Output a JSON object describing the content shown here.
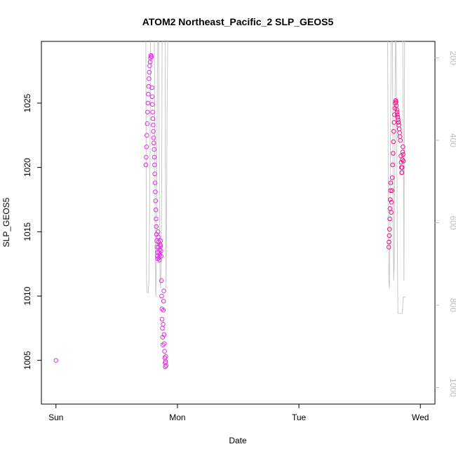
{
  "chart_data": {
    "type": "scatter",
    "title": "ATOM2 Northeast_Pacific_2 SLP_GEOS5",
    "xlabel": "Date",
    "ylabel": "SLP_GEOS5",
    "x_ticks": [
      {
        "value": 0.0,
        "label": "Sun"
      },
      {
        "value": 1.0,
        "label": "Mon"
      },
      {
        "value": 2.0,
        "label": "Tue"
      },
      {
        "value": 3.0,
        "label": "Wed"
      }
    ],
    "x_range_days": [
      -0.12,
      3.12
    ],
    "ylim": [
      1001.6,
      1029.8
    ],
    "y_ticks": [
      1005,
      1010,
      1015,
      1020,
      1025
    ],
    "y2_ticks": [
      200,
      400,
      600,
      800,
      1000
    ],
    "y2lim": [
      1040,
      160
    ],
    "colors": {
      "magenta": "#e22fe6",
      "deeppink": "#f0148c",
      "gray_line": "#c8c8c8"
    },
    "series": [
      {
        "color": "#e22fe6",
        "points": [
          [
            0.0,
            1005.0
          ],
          [
            0.74,
            1020.2
          ],
          [
            0.742,
            1020.8
          ],
          [
            0.745,
            1021.6
          ],
          [
            0.748,
            1022.5
          ],
          [
            0.751,
            1023.4
          ],
          [
            0.754,
            1024.3
          ],
          [
            0.757,
            1025.0
          ],
          [
            0.76,
            1025.7
          ],
          [
            0.763,
            1026.3
          ],
          [
            0.766,
            1026.9
          ],
          [
            0.769,
            1027.4
          ],
          [
            0.772,
            1027.9
          ],
          [
            0.775,
            1028.2
          ],
          [
            0.778,
            1028.5
          ],
          [
            0.781,
            1028.7
          ],
          [
            0.784,
            1028.7
          ],
          [
            0.787,
            1028.6
          ],
          [
            0.79,
            1026.2
          ],
          [
            0.792,
            1025.5
          ],
          [
            0.794,
            1024.9
          ],
          [
            0.796,
            1024.3
          ],
          [
            0.798,
            1023.8
          ],
          [
            0.8,
            1023.3
          ],
          [
            0.802,
            1022.8
          ],
          [
            0.804,
            1022.3
          ],
          [
            0.806,
            1021.9
          ],
          [
            0.808,
            1021.4
          ],
          [
            0.81,
            1020.8
          ],
          [
            0.812,
            1020.2
          ],
          [
            0.814,
            1019.5
          ],
          [
            0.816,
            1018.8
          ],
          [
            0.818,
            1018.1
          ],
          [
            0.82,
            1017.4
          ],
          [
            0.822,
            1016.7
          ],
          [
            0.824,
            1016.0
          ],
          [
            0.826,
            1015.4
          ],
          [
            0.828,
            1014.8
          ],
          [
            0.83,
            1014.3
          ],
          [
            0.832,
            1013.8
          ],
          [
            0.834,
            1013.4
          ],
          [
            0.836,
            1013.1
          ],
          [
            0.838,
            1012.9
          ],
          [
            0.84,
            1015.0
          ],
          [
            0.842,
            1014.6
          ],
          [
            0.844,
            1014.2
          ],
          [
            0.846,
            1013.8
          ],
          [
            0.848,
            1013.4
          ],
          [
            0.85,
            1013.0
          ],
          [
            0.852,
            1012.8
          ],
          [
            0.854,
            1013.2
          ],
          [
            0.856,
            1013.6
          ],
          [
            0.858,
            1014.0
          ],
          [
            0.86,
            1014.3
          ],
          [
            0.862,
            1013.9
          ],
          [
            0.864,
            1013.5
          ],
          [
            0.866,
            1013.1
          ],
          [
            0.868,
            1011.2
          ],
          [
            0.87,
            1010.0
          ],
          [
            0.872,
            1009.0
          ],
          [
            0.874,
            1008.2
          ],
          [
            0.876,
            1007.5
          ],
          [
            0.878,
            1006.8
          ],
          [
            0.88,
            1006.2
          ],
          [
            0.882,
            1007.8
          ],
          [
            0.884,
            1008.9
          ],
          [
            0.886,
            1009.6
          ],
          [
            0.888,
            1010.4
          ],
          [
            0.89,
            1007.0
          ],
          [
            0.892,
            1006.3
          ],
          [
            0.894,
            1005.7
          ],
          [
            0.896,
            1005.2
          ],
          [
            0.898,
            1004.8
          ],
          [
            0.9,
            1004.5
          ],
          [
            0.902,
            1004.9
          ],
          [
            0.904,
            1005.3
          ],
          [
            0.906,
            1004.6
          ]
        ]
      },
      {
        "color": "#f0148c",
        "points": [
          [
            2.74,
            1013.8
          ],
          [
            2.742,
            1014.2
          ],
          [
            2.744,
            1014.7
          ],
          [
            2.746,
            1015.2
          ],
          [
            2.748,
            1016.0
          ],
          [
            2.75,
            1016.8
          ],
          [
            2.752,
            1017.5
          ],
          [
            2.754,
            1018.2
          ],
          [
            2.756,
            1018.8
          ],
          [
            2.76,
            1016.5
          ],
          [
            2.763,
            1017.3
          ],
          [
            2.766,
            1018.2
          ],
          [
            2.769,
            1019.2
          ],
          [
            2.772,
            1020.2
          ],
          [
            2.775,
            1021.1
          ],
          [
            2.778,
            1022.0
          ],
          [
            2.781,
            1022.8
          ],
          [
            2.784,
            1023.5
          ],
          [
            2.787,
            1024.1
          ],
          [
            2.79,
            1024.6
          ],
          [
            2.793,
            1025.0
          ],
          [
            2.796,
            1025.2
          ],
          [
            2.799,
            1025.1
          ],
          [
            2.802,
            1024.8
          ],
          [
            2.805,
            1024.5
          ],
          [
            2.808,
            1024.3
          ],
          [
            2.811,
            1024.1
          ],
          [
            2.814,
            1023.9
          ],
          [
            2.817,
            1023.7
          ],
          [
            2.82,
            1023.5
          ],
          [
            2.823,
            1023.3
          ],
          [
            2.826,
            1023.0
          ],
          [
            2.829,
            1022.7
          ],
          [
            2.832,
            1022.4
          ],
          [
            2.835,
            1022.1
          ],
          [
            2.84,
            1020.9
          ],
          [
            2.842,
            1020.4
          ],
          [
            2.844,
            1020.0
          ],
          [
            2.846,
            1019.6
          ],
          [
            2.848,
            1019.6
          ],
          [
            2.85,
            1020.0
          ],
          [
            2.852,
            1020.6
          ],
          [
            2.854,
            1021.2
          ],
          [
            2.856,
            1021.6
          ],
          [
            2.858,
            1021.0
          ],
          [
            2.86,
            1020.5
          ]
        ]
      }
    ],
    "line_series": {
      "axis": "right",
      "color": "#c8c8c8",
      "segments": [
        [
          [
            0.74,
            160
          ],
          [
            0.745,
            740
          ],
          [
            0.75,
            770
          ],
          [
            0.755,
            770
          ],
          [
            0.76,
            770
          ],
          [
            0.765,
            740
          ],
          [
            0.77,
            620
          ],
          [
            0.775,
            420
          ],
          [
            0.778,
            160
          ]
        ],
        [
          [
            0.81,
            160
          ],
          [
            0.815,
            500
          ],
          [
            0.82,
            760
          ],
          [
            0.823,
            780
          ],
          [
            0.826,
            700
          ],
          [
            0.83,
            480
          ],
          [
            0.835,
            250
          ],
          [
            0.838,
            160
          ]
        ],
        [
          [
            0.845,
            160
          ],
          [
            0.85,
            420
          ],
          [
            0.855,
            690
          ],
          [
            0.858,
            740
          ],
          [
            0.862,
            760
          ],
          [
            0.865,
            700
          ],
          [
            0.87,
            530
          ],
          [
            0.874,
            160
          ]
        ],
        [
          [
            0.9,
            160
          ],
          [
            0.9,
            420
          ],
          [
            0.906,
            760
          ],
          [
            0.91,
            620
          ],
          [
            0.915,
            330
          ],
          [
            0.92,
            160
          ]
        ],
        [
          [
            2.73,
            160
          ],
          [
            2.735,
            420
          ],
          [
            2.74,
            740
          ],
          [
            2.745,
            760
          ],
          [
            2.75,
            620
          ],
          [
            2.755,
            330
          ],
          [
            2.76,
            160
          ]
        ],
        [
          [
            2.77,
            160
          ],
          [
            2.775,
            500
          ],
          [
            2.78,
            740
          ],
          [
            2.785,
            700
          ],
          [
            2.79,
            420
          ],
          [
            2.795,
            160
          ]
        ],
        [
          [
            2.8,
            160
          ],
          [
            2.805,
            360
          ],
          [
            2.81,
            640
          ],
          [
            2.815,
            820
          ],
          [
            2.82,
            820
          ],
          [
            2.84,
            820
          ],
          [
            2.85,
            820
          ],
          [
            2.86,
            780
          ],
          [
            2.87,
            780
          ],
          [
            2.88,
            780
          ]
        ],
        [
          [
            2.855,
            160
          ],
          [
            2.86,
            420
          ],
          [
            2.865,
            740
          ],
          [
            2.87,
            160
          ]
        ],
        [
          [
            2.85,
            160
          ],
          [
            2.852,
            160
          ]
        ]
      ]
    }
  }
}
